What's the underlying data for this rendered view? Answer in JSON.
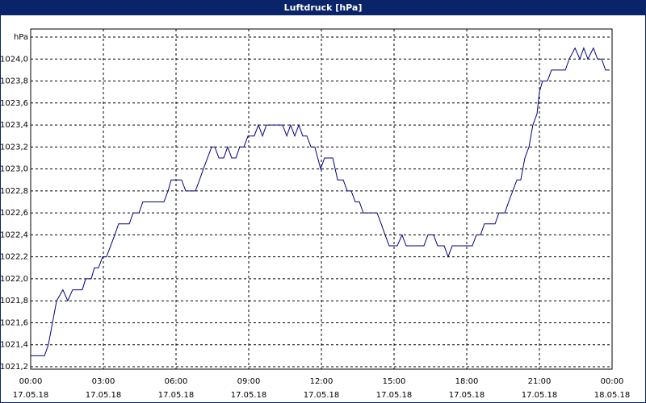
{
  "chart_data": {
    "type": "line",
    "title": "Luftdruck [hPa]",
    "x": [
      0,
      0.57,
      0.73,
      0.9,
      1.07,
      1.33,
      1.53,
      1.73,
      2.13,
      2.27,
      2.5,
      2.63,
      2.8,
      2.97,
      3.13,
      3.3,
      3.47,
      3.63,
      4.07,
      4.23,
      4.47,
      4.63,
      5.5,
      5.67,
      5.8,
      6.23,
      6.4,
      6.8,
      6.97,
      7.13,
      7.3,
      7.47,
      7.6,
      7.77,
      7.97,
      8.13,
      8.3,
      8.47,
      8.63,
      8.8,
      8.97,
      9.23,
      9.4,
      9.57,
      9.73,
      10.4,
      10.57,
      10.73,
      10.9,
      11.07,
      11.23,
      11.4,
      11.57,
      11.73,
      11.97,
      12.13,
      12.47,
      12.67,
      12.9,
      13.07,
      13.23,
      13.4,
      13.57,
      13.73,
      14.3,
      14.47,
      14.63,
      14.8,
      15.13,
      15.33,
      15.5,
      16.23,
      16.4,
      16.63,
      16.8,
      17.07,
      17.23,
      17.4,
      18.23,
      18.4,
      18.57,
      18.73,
      19.17,
      19.33,
      19.57,
      19.73,
      19.9,
      20.07,
      20.23,
      20.4,
      20.57,
      20.73,
      20.9,
      21,
      21.13,
      21.33,
      21.5,
      22.07,
      22.23,
      22.47,
      22.67,
      22.83,
      23,
      23.23,
      23.4,
      23.57,
      23.73,
      23.9
    ],
    "series": [
      {
        "color": "#000080",
        "values": [
          1021.3,
          1021.3,
          1021.4,
          1021.6,
          1021.8,
          1021.9,
          1021.8,
          1021.9,
          1021.9,
          1022.0,
          1022.0,
          1022.1,
          1022.1,
          1022.2,
          1022.2,
          1022.3,
          1022.4,
          1022.5,
          1022.5,
          1022.6,
          1022.6,
          1022.7,
          1022.7,
          1022.8,
          1022.9,
          1022.9,
          1022.8,
          1022.8,
          1022.9,
          1023.0,
          1023.1,
          1023.2,
          1023.2,
          1023.1,
          1023.1,
          1023.2,
          1023.1,
          1023.1,
          1023.2,
          1023.2,
          1023.3,
          1023.3,
          1023.4,
          1023.3,
          1023.4,
          1023.4,
          1023.3,
          1023.4,
          1023.3,
          1023.4,
          1023.3,
          1023.3,
          1023.2,
          1023.2,
          1023.0,
          1023.1,
          1023.1,
          1022.9,
          1022.9,
          1022.8,
          1022.8,
          1022.7,
          1022.7,
          1022.6,
          1022.6,
          1022.5,
          1022.4,
          1022.3,
          1022.3,
          1022.4,
          1022.3,
          1022.3,
          1022.4,
          1022.4,
          1022.3,
          1022.3,
          1022.2,
          1022.3,
          1022.3,
          1022.4,
          1022.4,
          1022.5,
          1022.5,
          1022.6,
          1022.6,
          1022.7,
          1022.8,
          1022.9,
          1022.9,
          1023.1,
          1023.2,
          1023.4,
          1023.5,
          1023.7,
          1023.8,
          1023.8,
          1023.9,
          1023.9,
          1024.0,
          1024.1,
          1024.0,
          1024.1,
          1024.0,
          1024.1,
          1024.0,
          1024.0,
          1023.9,
          1023.9
        ]
      }
    ],
    "xlim": [
      0,
      24
    ],
    "xticks": [
      {
        "value": 0,
        "label": "00:00",
        "date": "17.05.18"
      },
      {
        "value": 3,
        "label": "03:00",
        "date": "17.05.18"
      },
      {
        "value": 6,
        "label": "06:00",
        "date": "17.05.18"
      },
      {
        "value": 9,
        "label": "09:00",
        "date": "17.05.18"
      },
      {
        "value": 12,
        "label": "12:00",
        "date": "17.05.18"
      },
      {
        "value": 15,
        "label": "15:00",
        "date": "17.05.18"
      },
      {
        "value": 18,
        "label": "18:00",
        "date": "17.05.18"
      },
      {
        "value": 21,
        "label": "21:00",
        "date": "17.05.18"
      },
      {
        "value": 24,
        "label": "00:00",
        "date": "18.05.18"
      }
    ],
    "ylim": [
      1021.2,
      1024.2
    ],
    "yticks": [
      {
        "value": 1021.2,
        "label": "1021,2"
      },
      {
        "value": 1021.4,
        "label": "1021,4"
      },
      {
        "value": 1021.6,
        "label": "1021,6"
      },
      {
        "value": 1021.8,
        "label": "1021,8"
      },
      {
        "value": 1022.0,
        "label": "1022,0"
      },
      {
        "value": 1022.2,
        "label": "1022,2"
      },
      {
        "value": 1022.4,
        "label": "1022,4"
      },
      {
        "value": 1022.6,
        "label": "1022,6"
      },
      {
        "value": 1022.8,
        "label": "1022,8"
      },
      {
        "value": 1023.0,
        "label": "1023,0"
      },
      {
        "value": 1023.2,
        "label": "1023,2"
      },
      {
        "value": 1023.4,
        "label": "1023,4"
      },
      {
        "value": 1023.6,
        "label": "1023,6"
      },
      {
        "value": 1023.8,
        "label": "1023,8"
      },
      {
        "value": 1024.0,
        "label": "1024,0"
      },
      {
        "value": 1024.2,
        "label": "hPa"
      }
    ],
    "grid": true
  }
}
